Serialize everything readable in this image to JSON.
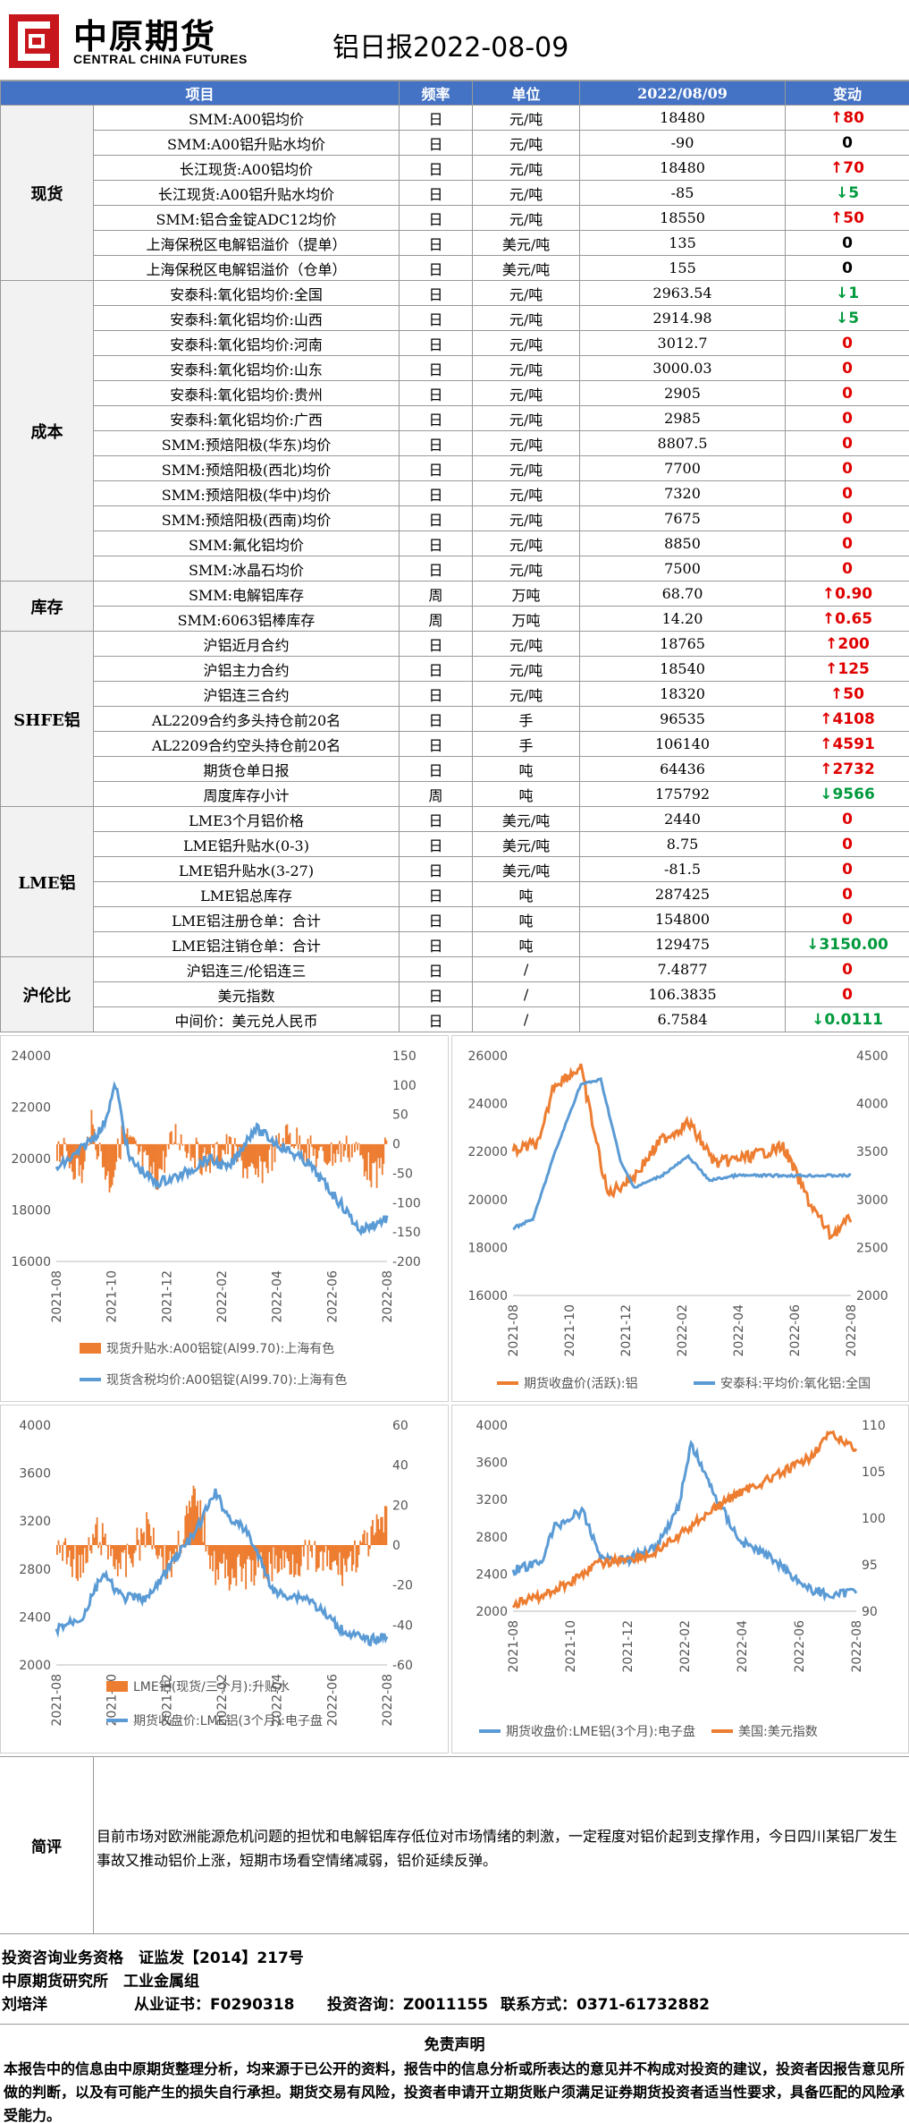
{
  "header": {
    "logo_cn": "中原期货",
    "logo_en": "CENTRAL CHINA FUTURES",
    "title": "铝日报2022-08-09"
  },
  "table": {
    "headers": [
      "项目",
      "频率",
      "单位",
      "2022/08/09",
      "变动"
    ],
    "groups": [
      {
        "name": "现货",
        "rows": [
          {
            "item": "SMM:A00铝均价",
            "freq": "日",
            "unit": "元/吨",
            "value": "18480",
            "change": "80",
            "dir": "up"
          },
          {
            "item": "SMM:A00铝升贴水均价",
            "freq": "日",
            "unit": "元/吨",
            "value": "-90",
            "change": "0",
            "dir": "flat"
          },
          {
            "item": "长江现货:A00铝均价",
            "freq": "日",
            "unit": "元/吨",
            "value": "18480",
            "change": "70",
            "dir": "up"
          },
          {
            "item": "长江现货:A00铝升贴水均价",
            "freq": "日",
            "unit": "元/吨",
            "value": "-85",
            "change": "5",
            "dir": "down"
          },
          {
            "item": "SMM:铝合金锭ADC12均价",
            "freq": "日",
            "unit": "元/吨",
            "value": "18550",
            "change": "50",
            "dir": "up"
          },
          {
            "item": "上海保税区电解铝溢价（提单）",
            "freq": "日",
            "unit": "美元/吨",
            "value": "135",
            "change": "0",
            "dir": "flat"
          },
          {
            "item": "上海保税区电解铝溢价（仓单）",
            "freq": "日",
            "unit": "美元/吨",
            "value": "155",
            "change": "0",
            "dir": "flat"
          }
        ]
      },
      {
        "name": "成本",
        "rows": [
          {
            "item": "安泰科:氧化铝均价:全国",
            "freq": "日",
            "unit": "元/吨",
            "value": "2963.54",
            "change": "1",
            "dir": "down"
          },
          {
            "item": "安泰科:氧化铝均价:山西",
            "freq": "日",
            "unit": "元/吨",
            "value": "2914.98",
            "change": "5",
            "dir": "down"
          },
          {
            "item": "安泰科:氧化铝均价:河南",
            "freq": "日",
            "unit": "元/吨",
            "value": "3012.7",
            "change": "0",
            "dir": "zero"
          },
          {
            "item": "安泰科:氧化铝均价:山东",
            "freq": "日",
            "unit": "元/吨",
            "value": "3000.03",
            "change": "0",
            "dir": "zero"
          },
          {
            "item": "安泰科:氧化铝均价:贵州",
            "freq": "日",
            "unit": "元/吨",
            "value": "2905",
            "change": "0",
            "dir": "zero"
          },
          {
            "item": "安泰科:氧化铝均价:广西",
            "freq": "日",
            "unit": "元/吨",
            "value": "2985",
            "change": "0",
            "dir": "zero"
          },
          {
            "item": "SMM:预焙阳极(华东)均价",
            "freq": "日",
            "unit": "元/吨",
            "value": "8807.5",
            "change": "0",
            "dir": "zero"
          },
          {
            "item": "SMM:预焙阳极(西北)均价",
            "freq": "日",
            "unit": "元/吨",
            "value": "7700",
            "change": "0",
            "dir": "zero"
          },
          {
            "item": "SMM:预焙阳极(华中)均价",
            "freq": "日",
            "unit": "元/吨",
            "value": "7320",
            "change": "0",
            "dir": "zero"
          },
          {
            "item": "SMM:预焙阳极(西南)均价",
            "freq": "日",
            "unit": "元/吨",
            "value": "7675",
            "change": "0",
            "dir": "zero"
          },
          {
            "item": "SMM:氟化铝均价",
            "freq": "日",
            "unit": "元/吨",
            "value": "8850",
            "change": "0",
            "dir": "zero"
          },
          {
            "item": "SMM:冰晶石均价",
            "freq": "日",
            "unit": "元/吨",
            "value": "7500",
            "change": "0",
            "dir": "zero"
          }
        ]
      },
      {
        "name": "库存",
        "rows": [
          {
            "item": "SMM:电解铝库存",
            "freq": "周",
            "unit": "万吨",
            "value": "68.70",
            "change": "0.90",
            "dir": "up"
          },
          {
            "item": "SMM:6063铝棒库存",
            "freq": "周",
            "unit": "万吨",
            "value": "14.20",
            "change": "0.65",
            "dir": "up"
          }
        ]
      },
      {
        "name": "SHFE铝",
        "rows": [
          {
            "item": "沪铝近月合约",
            "freq": "日",
            "unit": "元/吨",
            "value": "18765",
            "change": "200",
            "dir": "up"
          },
          {
            "item": "沪铝主力合约",
            "freq": "日",
            "unit": "元/吨",
            "value": "18540",
            "change": "125",
            "dir": "up"
          },
          {
            "item": "沪铝连三合约",
            "freq": "日",
            "unit": "元/吨",
            "value": "18320",
            "change": "50",
            "dir": "up"
          },
          {
            "item": "AL2209合约多头持仓前20名",
            "freq": "日",
            "unit": "手",
            "value": "96535",
            "change": "4108",
            "dir": "up"
          },
          {
            "item": "AL2209合约空头持仓前20名",
            "freq": "日",
            "unit": "手",
            "value": "106140",
            "change": "4591",
            "dir": "up"
          },
          {
            "item": "期货仓单日报",
            "freq": "日",
            "unit": "吨",
            "value": "64436",
            "change": "2732",
            "dir": "up"
          },
          {
            "item": "周度库存小计",
            "freq": "周",
            "unit": "吨",
            "value": "175792",
            "change": "9566",
            "dir": "down"
          }
        ]
      },
      {
        "name": "LME铝",
        "rows": [
          {
            "item": "LME3个月铝价格",
            "freq": "日",
            "unit": "美元/吨",
            "value": "2440",
            "change": "0",
            "dir": "zero"
          },
          {
            "item": "LME铝升贴水(0-3)",
            "freq": "日",
            "unit": "美元/吨",
            "value": "8.75",
            "change": "0",
            "dir": "zero"
          },
          {
            "item": "LME铝升贴水(3-27)",
            "freq": "日",
            "unit": "美元/吨",
            "value": "-81.5",
            "change": "0",
            "dir": "zero"
          },
          {
            "item": "LME铝总库存",
            "freq": "日",
            "unit": "吨",
            "value": "287425",
            "change": "0",
            "dir": "zero"
          },
          {
            "item": "LME铝注册仓单：合计",
            "freq": "日",
            "unit": "吨",
            "value": "154800",
            "change": "0",
            "dir": "zero"
          },
          {
            "item": "LME铝注销仓单：合计",
            "freq": "日",
            "unit": "吨",
            "value": "129475",
            "change": "3150.00",
            "dir": "down"
          }
        ]
      },
      {
        "name": "沪伦比",
        "rows": [
          {
            "item": "沪铝连三/伦铝连三",
            "freq": "日",
            "unit": "/",
            "value": "7.4877",
            "change": "0",
            "dir": "zero"
          },
          {
            "item": "美元指数",
            "freq": "日",
            "unit": "/",
            "value": "106.3835",
            "change": "0",
            "dir": "zero"
          },
          {
            "item": "中间价：美元兑人民币",
            "freq": "日",
            "unit": "/",
            "value": "6.7584",
            "change": "0.0111",
            "dir": "down"
          }
        ]
      }
    ]
  },
  "charts": {
    "date_ticks": [
      "2021-08",
      "2021-10",
      "2021-12",
      "2022-02",
      "2022-04",
      "2022-06",
      "2022-08"
    ],
    "colors": {
      "blue": "#5b9bd5",
      "orange": "#ed7d31"
    },
    "c1": {
      "left_ticks": [
        "24000",
        "22000",
        "20000",
        "18000",
        "16000"
      ],
      "right_ticks": [
        "150",
        "100",
        "50",
        "0",
        "-50",
        "-100",
        "-150",
        "-200"
      ],
      "legend": [
        "现货升贴水:A00铝锭(Al99.70):上海有色",
        "现货含税均价:A00铝锭(Al99.70):上海有色"
      ]
    },
    "c2": {
      "left_ticks": [
        "26000",
        "24000",
        "22000",
        "20000",
        "18000",
        "16000"
      ],
      "right_ticks": [
        "4500",
        "4000",
        "3500",
        "3000",
        "2500",
        "2000"
      ],
      "legend": [
        "期货收盘价(活跃):铝",
        "安泰科:平均价:氧化铝:全国"
      ]
    },
    "c3": {
      "left_ticks": [
        "4000",
        "3600",
        "3200",
        "2800",
        "2400",
        "2000"
      ],
      "right_ticks": [
        "60",
        "40",
        "20",
        "0",
        "-20",
        "-40",
        "-60"
      ],
      "legend": [
        "LME铝(现货/三个月):升贴水",
        "期货收盘价:LME铝(3个月):电子盘"
      ]
    },
    "c4": {
      "left_ticks": [
        "4000",
        "3600",
        "3200",
        "2800",
        "2400",
        "2000"
      ],
      "right_ticks": [
        "110",
        "105",
        "100",
        "95",
        "90"
      ],
      "legend": [
        "期货收盘价:LME铝(3个月):电子盘",
        "美国:美元指数"
      ]
    }
  },
  "comment": {
    "label": "简评",
    "text": "目前市场对欧洲能源危机问题的担忧和电解铝库存低位对市场情绪的刺激，一定程度对铝价起到支撑作用，今日四川某铝厂发生事故又推动铝价上涨，短期市场看空情绪减弱，铝价延续反弹。"
  },
  "footer": {
    "line1": "投资咨询业务资格　证监发【2014】217号",
    "line2": "中原期货研究所　工业金属组",
    "name": "刘培洋",
    "cert": "从业证书：F0290318",
    "consult": "投资咨询：Z0011155",
    "contact": "联系方式：0371-61732882"
  },
  "disclaimer": {
    "title": "免责声明",
    "text": "本报告中的信息由中原期货整理分析，均来源于已公开的资料，报告中的信息分析或所表达的意见并不构成对投资的建议，投资者因报告意见所做的判断，以及有可能产生的损失自行承担。期货交易有风险，投资者申请开立期货账户须满足证券期货投资者适当性要求，具备匹配的风险承受能力。"
  },
  "arrows": {
    "up": "↑",
    "down": "↓"
  }
}
